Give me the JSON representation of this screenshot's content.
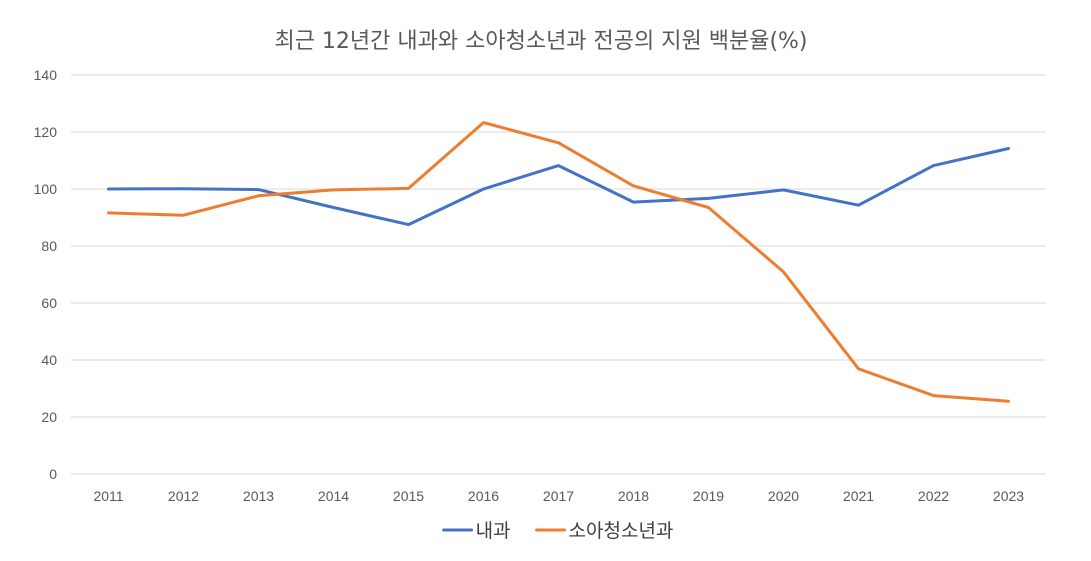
{
  "chart_data": {
    "type": "line",
    "title": "최근 12년간 내과와 소아청소년과 전공의 지원 백분율(%)",
    "xlabel": "",
    "ylabel": "",
    "ylim": [
      0,
      140
    ],
    "yticks": [
      0,
      20,
      40,
      60,
      80,
      100,
      120,
      140
    ],
    "grid": true,
    "legend_position": "bottom",
    "categories": [
      "2011",
      "2012",
      "2013",
      "2014",
      "2015",
      "2016",
      "2017",
      "2018",
      "2019",
      "2020",
      "2021",
      "2022",
      "2023"
    ],
    "series": [
      {
        "name": "내과",
        "color": "#4472c4",
        "values": [
          100,
          100.1,
          99.8,
          93.5,
          87.5,
          100,
          108.2,
          95.4,
          96.7,
          99.7,
          94.3,
          108.2,
          114.2
        ]
      },
      {
        "name": "소아청소년과",
        "color": "#ed7d31",
        "values": [
          91.6,
          90.8,
          97.6,
          99.7,
          100.2,
          123.3,
          116.2,
          101.1,
          93.5,
          70.9,
          36.9,
          27.5,
          25.5
        ]
      }
    ]
  }
}
